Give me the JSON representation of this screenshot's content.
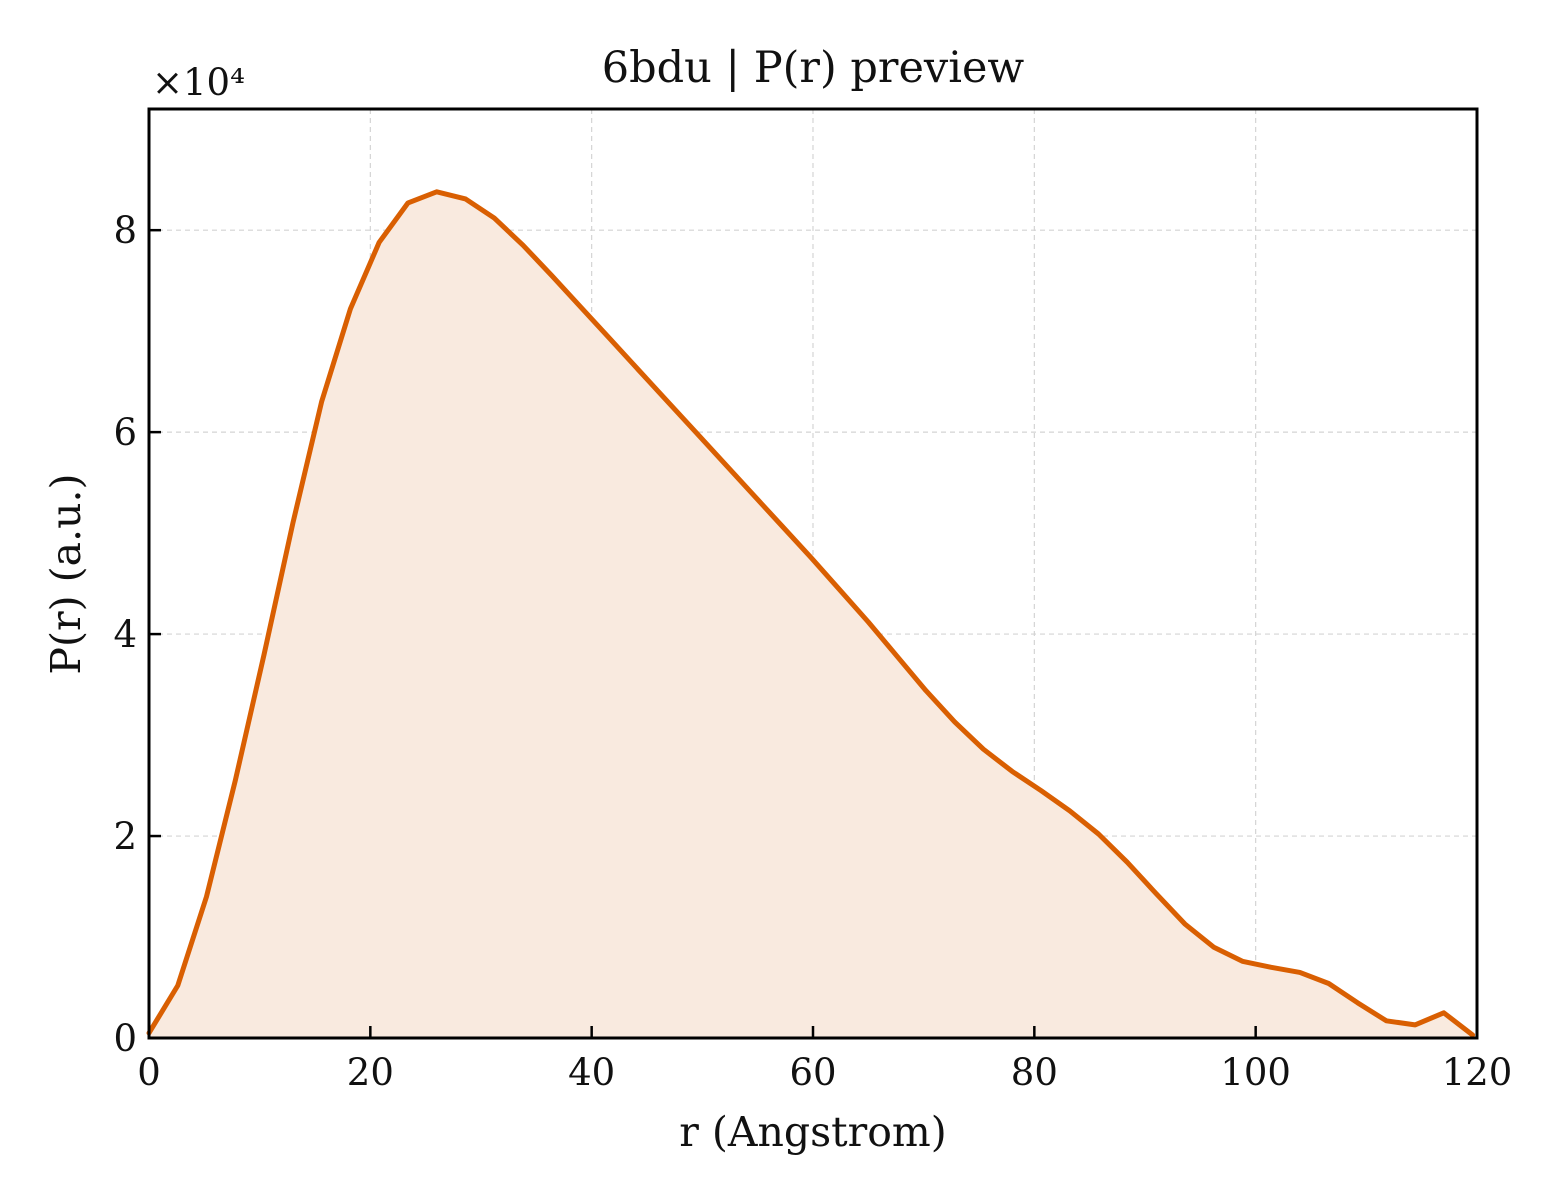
{
  "chart_data": {
    "type": "area",
    "title": "6bdu | P(r) preview",
    "xlabel": "r (Angstrom)",
    "ylabel": "P(r) (a.u.)",
    "y_scale_label": "×10⁴",
    "xlim": [
      0,
      120
    ],
    "ylim": [
      0,
      9.2
    ],
    "x_ticks": [
      0,
      20,
      40,
      60,
      80,
      100,
      120
    ],
    "x_tick_labels": [
      "0",
      "20",
      "40",
      "60",
      "80",
      "100",
      "120"
    ],
    "y_ticks": [
      0,
      2,
      4,
      6,
      8
    ],
    "y_tick_labels": [
      "0",
      "2",
      "4",
      "6",
      "8"
    ],
    "grid": true,
    "colors": {
      "line": "#d95f02",
      "fill": "#f9eadf"
    },
    "series": [
      {
        "x": [
          0,
          2.6,
          5.2,
          7.8,
          10.4,
          13.0,
          15.6,
          18.2,
          20.8,
          23.4,
          26.0,
          28.6,
          31.2,
          33.8,
          36.4,
          39.0,
          41.6,
          44.2,
          46.8,
          49.4,
          52.0,
          54.6,
          57.2,
          59.8,
          62.4,
          65.0,
          67.6,
          70.2,
          72.8,
          75.4,
          78.0,
          80.6,
          83.2,
          85.8,
          88.4,
          91.0,
          93.6,
          96.2,
          98.8,
          101.4,
          104.0,
          106.6,
          109.2,
          111.8,
          114.4,
          117.0,
          119.6
        ],
        "y": [
          0.05,
          0.52,
          1.4,
          2.55,
          3.8,
          5.1,
          6.3,
          7.22,
          7.88,
          8.27,
          8.38,
          8.31,
          8.12,
          7.85,
          7.55,
          7.24,
          6.93,
          6.62,
          6.31,
          6.0,
          5.69,
          5.38,
          5.07,
          4.76,
          4.44,
          4.12,
          3.78,
          3.44,
          3.13,
          2.86,
          2.64,
          2.45,
          2.25,
          2.02,
          1.74,
          1.43,
          1.13,
          0.9,
          0.76,
          0.7,
          0.65,
          0.54,
          0.35,
          0.17,
          0.13,
          0.25,
          0.03
        ]
      }
    ]
  }
}
